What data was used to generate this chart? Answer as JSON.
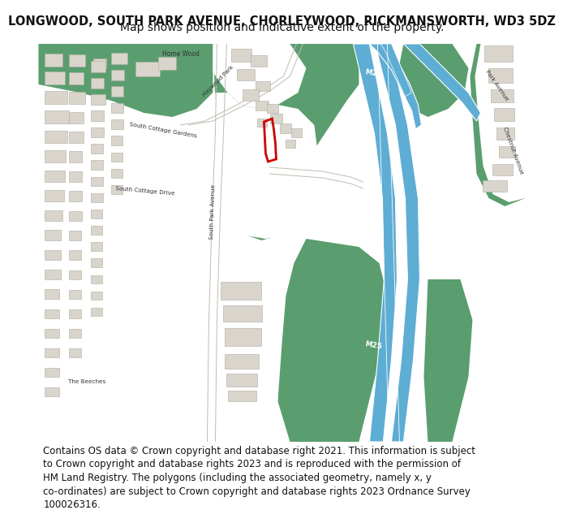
{
  "title_line1": "LONGWOOD, SOUTH PARK AVENUE, CHORLEYWOOD, RICKMANSWORTH, WD3 5DZ",
  "title_line2": "Map shows position and indicative extent of the property.",
  "footer_lines": [
    "Contains OS data © Crown copyright and database right 2021. This information is subject",
    "to Crown copyright and database rights 2023 and is reproduced with the permission of",
    "HM Land Registry. The polygons (including the associated geometry, namely x, y",
    "co-ordinates) are subject to Crown copyright and database rights 2023 Ordnance Survey",
    "100026316."
  ],
  "bg_color": "#ffffff",
  "map_bg": "#f0ede8",
  "green_color": "#5a9e6f",
  "road_color": "#ffffff",
  "motorway_color": "#5dadd4",
  "building_color": "#d9d5cc",
  "building_outline": "#b0aba0",
  "red_outline": "#cc0000",
  "title_fontsize": 10.5,
  "subtitle_fontsize": 10,
  "footer_fontsize": 8.5
}
